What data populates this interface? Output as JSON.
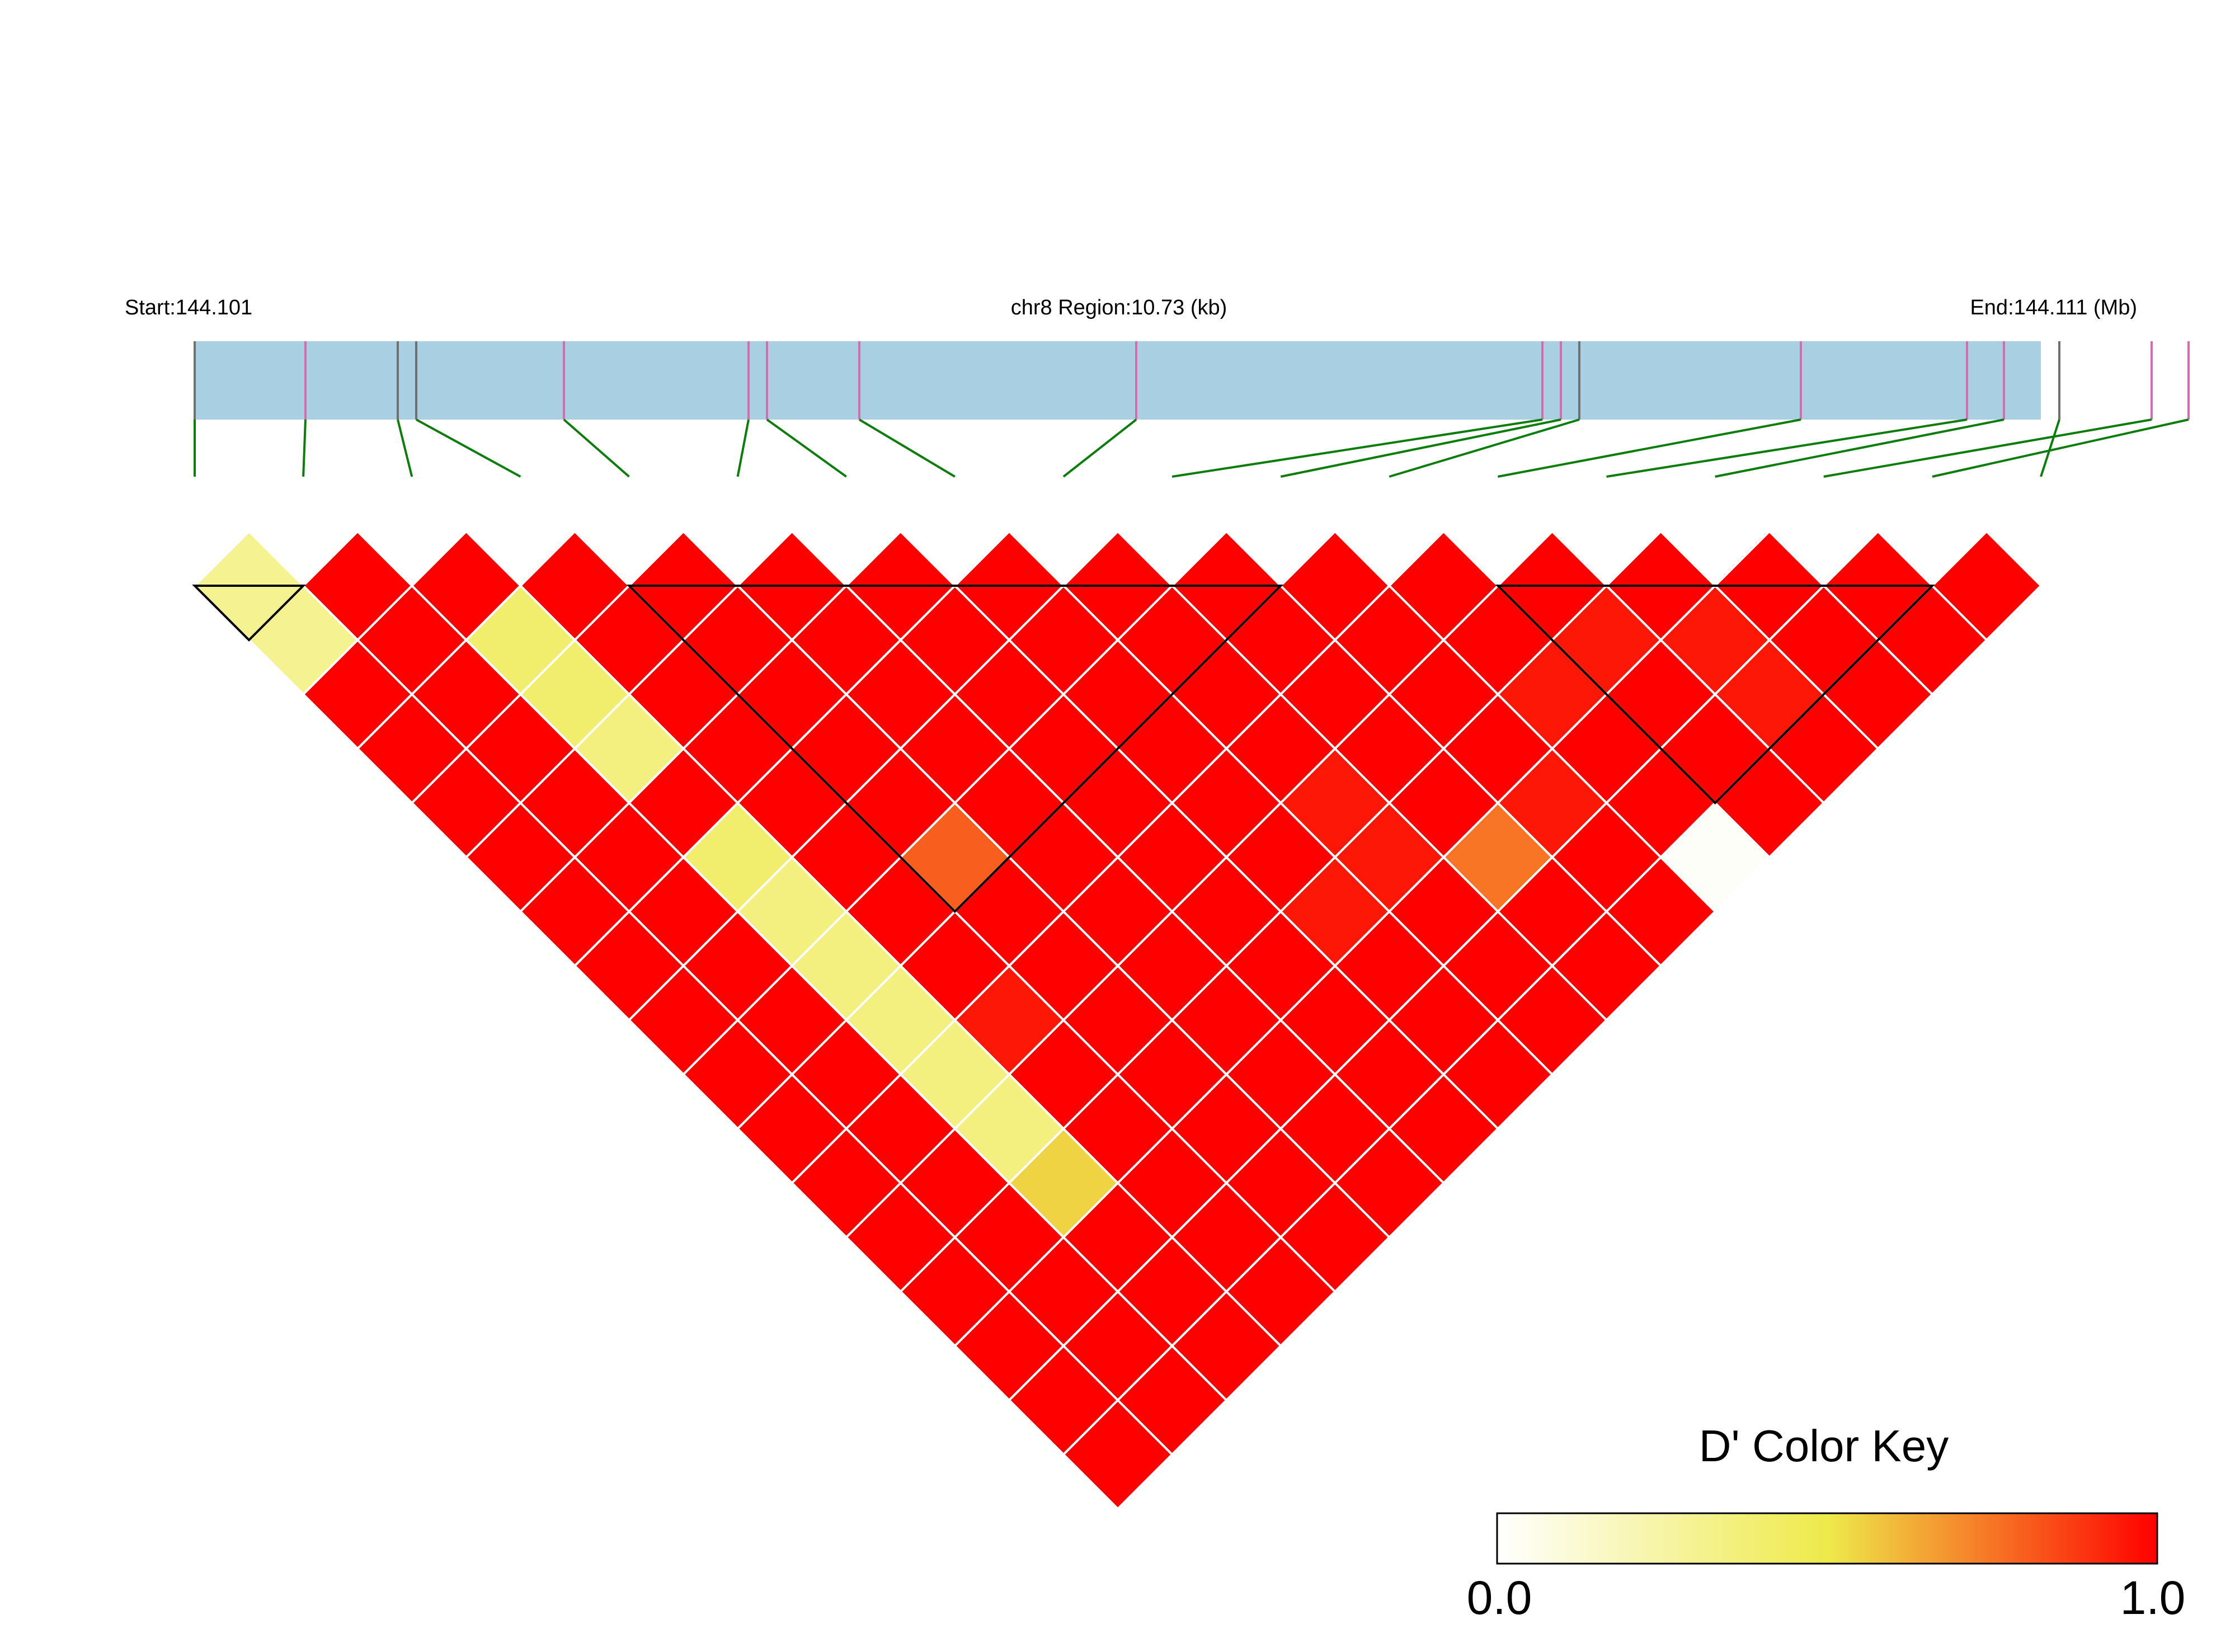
{
  "header": {
    "start_label": "Start:144.101",
    "region_label": "chr8 Region:10.73 (kb)",
    "end_label": "End:144.111 (Mb)"
  },
  "colors": {
    "track": "#a8cfe2",
    "snp_pink": "#d86bb0",
    "snp_grey": "#707070",
    "connector": "#0a7d0a",
    "cell_border": "#ffffff",
    "block_outline": "#000000",
    "strong": "#ff0000"
  },
  "chart_data": {
    "type": "heatmap",
    "variant": "LD triangle (D')",
    "region": {
      "chromosome": "chr8",
      "start_mb": 144.101,
      "end_mb": 144.111,
      "length_kb": 10.73
    },
    "snp_count": 18,
    "snp_track_positions_mb": [
      144.101,
      144.1016,
      144.1021,
      144.1022,
      144.103,
      144.104,
      144.1041,
      144.1046,
      144.1061,
      144.1083,
      144.1084,
      144.1085,
      144.1097,
      144.1106,
      144.1108,
      144.1116,
      144.1118,
      144.1111
    ],
    "snp_track_colors": [
      "grey",
      "pink",
      "grey",
      "grey",
      "pink",
      "pink",
      "pink",
      "pink",
      "pink",
      "pink",
      "pink",
      "grey",
      "pink",
      "pink",
      "pink",
      "pink",
      "pink",
      "grey"
    ],
    "default_dprime": 1.0,
    "dprime_exceptions": [
      {
        "i": 1,
        "j": 2,
        "value": 0.3
      },
      {
        "i": 1,
        "j": 3,
        "value": 0.3
      },
      {
        "i": 3,
        "j": 5,
        "value": 0.4
      },
      {
        "i": 3,
        "j": 6,
        "value": 0.4
      },
      {
        "i": 3,
        "j": 7,
        "value": 0.35
      },
      {
        "i": 3,
        "j": 9,
        "value": 0.4
      },
      {
        "i": 3,
        "j": 10,
        "value": 0.35
      },
      {
        "i": 3,
        "j": 11,
        "value": 0.35
      },
      {
        "i": 3,
        "j": 12,
        "value": 0.35
      },
      {
        "i": 3,
        "j": 13,
        "value": 0.35
      },
      {
        "i": 3,
        "j": 14,
        "value": 0.35
      },
      {
        "i": 3,
        "j": 15,
        "value": 0.55
      },
      {
        "i": 5,
        "j": 11,
        "value": 0.8
      },
      {
        "i": 4,
        "j": 13,
        "value": 0.95
      },
      {
        "i": 10,
        "j": 16,
        "value": 0.75
      },
      {
        "i": 11,
        "j": 16,
        "value": 0.95
      },
      {
        "i": 12,
        "j": 15,
        "value": 0.95
      },
      {
        "i": 14,
        "j": 16,
        "value": 0.95
      },
      {
        "i": 14,
        "j": 17,
        "value": 0.95
      },
      {
        "i": 13,
        "j": 15,
        "value": 0.95
      },
      {
        "i": 8,
        "j": 15,
        "value": 0.95
      },
      {
        "i": 9,
        "j": 15,
        "value": 0.95
      },
      {
        "i": 9,
        "j": 14,
        "value": 0.95
      },
      {
        "i": 12,
        "j": 18,
        "value": 0.02
      }
    ],
    "blocks": [
      {
        "from": 1,
        "to": 2
      },
      {
        "from": 5,
        "to": 11
      },
      {
        "from": 13,
        "to": 17
      }
    ],
    "color_key": {
      "title": "D' Color Key",
      "min_label": "0.0",
      "max_label": "1.0",
      "stops": [
        {
          "value": 0.0,
          "color": "#ffffff"
        },
        {
          "value": 0.5,
          "color": "#eeea4a"
        },
        {
          "value": 1.0,
          "color": "#ff0000"
        }
      ]
    }
  }
}
